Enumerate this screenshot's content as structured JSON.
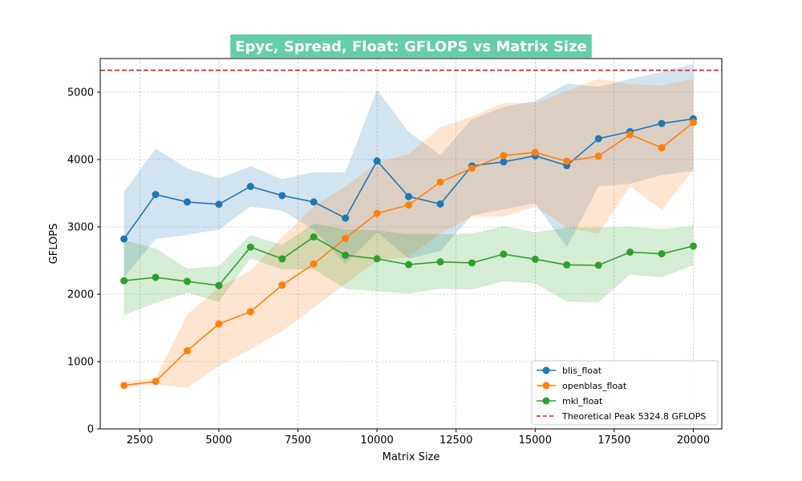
{
  "chart_data": {
    "type": "line",
    "title": "Epyc, Spread, Float: GFLOPS vs Matrix Size",
    "xlabel": "Matrix Size",
    "ylabel": "GFLOPS",
    "xlim": [
      1250,
      20900
    ],
    "ylim": [
      0,
      5500
    ],
    "xticks": [
      2500,
      5000,
      7500,
      10000,
      12500,
      15000,
      17500,
      20000
    ],
    "yticks": [
      0,
      1000,
      2000,
      3000,
      4000,
      5000
    ],
    "grid": true,
    "legend_position": "lower-right",
    "x": [
      2000,
      3000,
      4000,
      5000,
      6000,
      7000,
      8000,
      9000,
      10000,
      11000,
      12000,
      13000,
      14000,
      15000,
      16000,
      17000,
      18000,
      19000,
      20000
    ],
    "series": [
      {
        "name": "blis_float",
        "color": "#1f77b4",
        "values": [
          2820,
          3480,
          3370,
          3335,
          3600,
          3465,
          3370,
          3130,
          3980,
          3450,
          3340,
          3905,
          3965,
          4055,
          3910,
          4310,
          4415,
          4535,
          4605
        ],
        "band_upper": [
          3520,
          4160,
          3870,
          3720,
          3900,
          3710,
          3810,
          3810,
          5040,
          4410,
          4070,
          4600,
          4780,
          4870,
          5130,
          5080,
          5200,
          5300,
          5420
        ],
        "band_lower": [
          2250,
          2820,
          2880,
          2960,
          3300,
          3240,
          2960,
          2450,
          2920,
          2530,
          2640,
          3170,
          3260,
          3350,
          2700,
          3600,
          3640,
          3770,
          3830
        ]
      },
      {
        "name": "openblas_float",
        "color": "#ff7f0e",
        "values": [
          645,
          705,
          1160,
          1560,
          1740,
          2135,
          2450,
          2830,
          3200,
          3325,
          3665,
          3870,
          4060,
          4105,
          3975,
          4050,
          4370,
          4175,
          4550
        ],
        "band_upper": [
          700,
          750,
          1700,
          2100,
          2350,
          2850,
          3300,
          3600,
          3950,
          4080,
          4480,
          4640,
          4840,
          4840,
          5020,
          5200,
          5120,
          5100,
          5200
        ],
        "band_lower": [
          620,
          660,
          610,
          930,
          1180,
          1450,
          1800,
          2150,
          2500,
          2550,
          2900,
          3150,
          3150,
          3300,
          2990,
          2900,
          3600,
          3250,
          3850
        ]
      },
      {
        "name": "mkl_float",
        "color": "#2ca02c",
        "values": [
          2200,
          2250,
          2190,
          2130,
          2700,
          2525,
          2850,
          2580,
          2525,
          2440,
          2480,
          2465,
          2595,
          2520,
          2435,
          2430,
          2625,
          2600,
          2715
        ],
        "band_upper": [
          2800,
          2680,
          2380,
          2420,
          2880,
          2730,
          3050,
          2960,
          2950,
          2890,
          2890,
          2900,
          3010,
          2920,
          2990,
          2990,
          3000,
          2970,
          3010
        ],
        "band_lower": [
          1690,
          1870,
          2020,
          1890,
          2530,
          2370,
          2370,
          2080,
          2040,
          2010,
          2080,
          2070,
          2190,
          2160,
          1890,
          1880,
          2290,
          2250,
          2430
        ]
      }
    ],
    "reference_line": {
      "name": "Theoretical Peak 5324.8 GFLOPS",
      "value": 5324.8,
      "color": "#e31a1c",
      "style": "dashed"
    },
    "title_background": "#66cdaa"
  }
}
